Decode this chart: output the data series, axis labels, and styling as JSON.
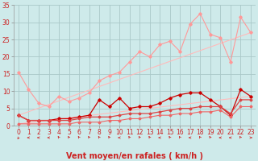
{
  "title": "",
  "xlabel": "Vent moyen/en rafales ( km/h )",
  "xlim": [
    -0.5,
    23.5
  ],
  "ylim": [
    0,
    35
  ],
  "xticks": [
    0,
    1,
    2,
    3,
    4,
    5,
    6,
    7,
    8,
    9,
    10,
    11,
    12,
    13,
    14,
    15,
    16,
    17,
    18,
    19,
    20,
    21,
    22,
    23
  ],
  "yticks": [
    0,
    5,
    10,
    15,
    20,
    25,
    30,
    35
  ],
  "background_color": "#ceeaea",
  "grid_color": "#aac8c8",
  "series": [
    {
      "x": [
        0,
        1,
        2,
        3,
        4,
        5,
        6,
        7,
        8,
        9,
        10,
        11,
        12,
        13,
        14,
        15,
        16,
        17,
        18,
        19,
        20,
        21,
        22,
        23
      ],
      "y": [
        15.5,
        10.5,
        6.5,
        5.5,
        8.5,
        7.0,
        8.0,
        9.5,
        13.0,
        14.5,
        15.5,
        18.5,
        21.5,
        20.0,
        23.5,
        24.5,
        21.5,
        29.5,
        32.5,
        26.5,
        25.5,
        18.5,
        31.5,
        27.0
      ],
      "color": "#ff9999",
      "linewidth": 0.8,
      "marker": "D",
      "markersize": 1.8
    },
    {
      "x": [
        0,
        23
      ],
      "y": [
        3.0,
        27.0
      ],
      "color": "#ffbbbb",
      "linewidth": 0.8,
      "marker": null,
      "markersize": 0
    },
    {
      "x": [
        0,
        23
      ],
      "y": [
        0.5,
        8.5
      ],
      "color": "#ffbbbb",
      "linewidth": 0.8,
      "marker": null,
      "markersize": 0
    },
    {
      "x": [
        0,
        1,
        2,
        3,
        4,
        5,
        6,
        7,
        8,
        9,
        10,
        11,
        12,
        13,
        14,
        15,
        16,
        17,
        18,
        19,
        20,
        21,
        22,
        23
      ],
      "y": [
        3.0,
        1.5,
        1.5,
        1.5,
        2.0,
        2.0,
        2.5,
        3.0,
        7.5,
        5.5,
        8.0,
        5.0,
        5.5,
        5.5,
        6.5,
        8.0,
        9.0,
        9.5,
        9.5,
        7.5,
        5.5,
        3.0,
        10.5,
        8.5
      ],
      "color": "#cc0000",
      "linewidth": 0.9,
      "marker": "D",
      "markersize": 1.8
    },
    {
      "x": [
        0,
        1,
        2,
        3,
        4,
        5,
        6,
        7,
        8,
        9,
        10,
        11,
        12,
        13,
        14,
        15,
        16,
        17,
        18,
        19,
        20,
        21,
        22,
        23
      ],
      "y": [
        3.0,
        1.5,
        1.5,
        1.5,
        1.5,
        1.5,
        2.0,
        2.5,
        2.5,
        2.5,
        3.0,
        3.5,
        3.5,
        3.5,
        4.0,
        4.5,
        5.0,
        5.0,
        5.5,
        5.5,
        5.5,
        3.5,
        7.5,
        7.5
      ],
      "color": "#dd4444",
      "linewidth": 0.9,
      "marker": "D",
      "markersize": 1.5
    },
    {
      "x": [
        0,
        1,
        2,
        3,
        4,
        5,
        6,
        7,
        8,
        9,
        10,
        11,
        12,
        13,
        14,
        15,
        16,
        17,
        18,
        19,
        20,
        21,
        22,
        23
      ],
      "y": [
        0.5,
        0.5,
        0.5,
        0.5,
        0.5,
        0.5,
        1.0,
        1.0,
        1.0,
        1.5,
        1.5,
        2.0,
        2.0,
        2.5,
        3.0,
        3.0,
        3.5,
        3.5,
        4.0,
        4.0,
        4.5,
        2.5,
        5.5,
        5.5
      ],
      "color": "#ee6666",
      "linewidth": 0.8,
      "marker": "D",
      "markersize": 1.5
    }
  ],
  "arrow_angles": [
    225,
    270,
    270,
    270,
    315,
    315,
    315,
    315,
    315,
    315,
    270,
    315,
    315,
    315,
    270,
    315,
    315,
    270,
    315,
    315,
    270,
    270,
    315,
    90
  ],
  "tick_label_color": "#cc2222",
  "tick_label_fontsize": 5.5,
  "xlabel_fontsize": 7.0,
  "xlabel_color": "#cc2222"
}
